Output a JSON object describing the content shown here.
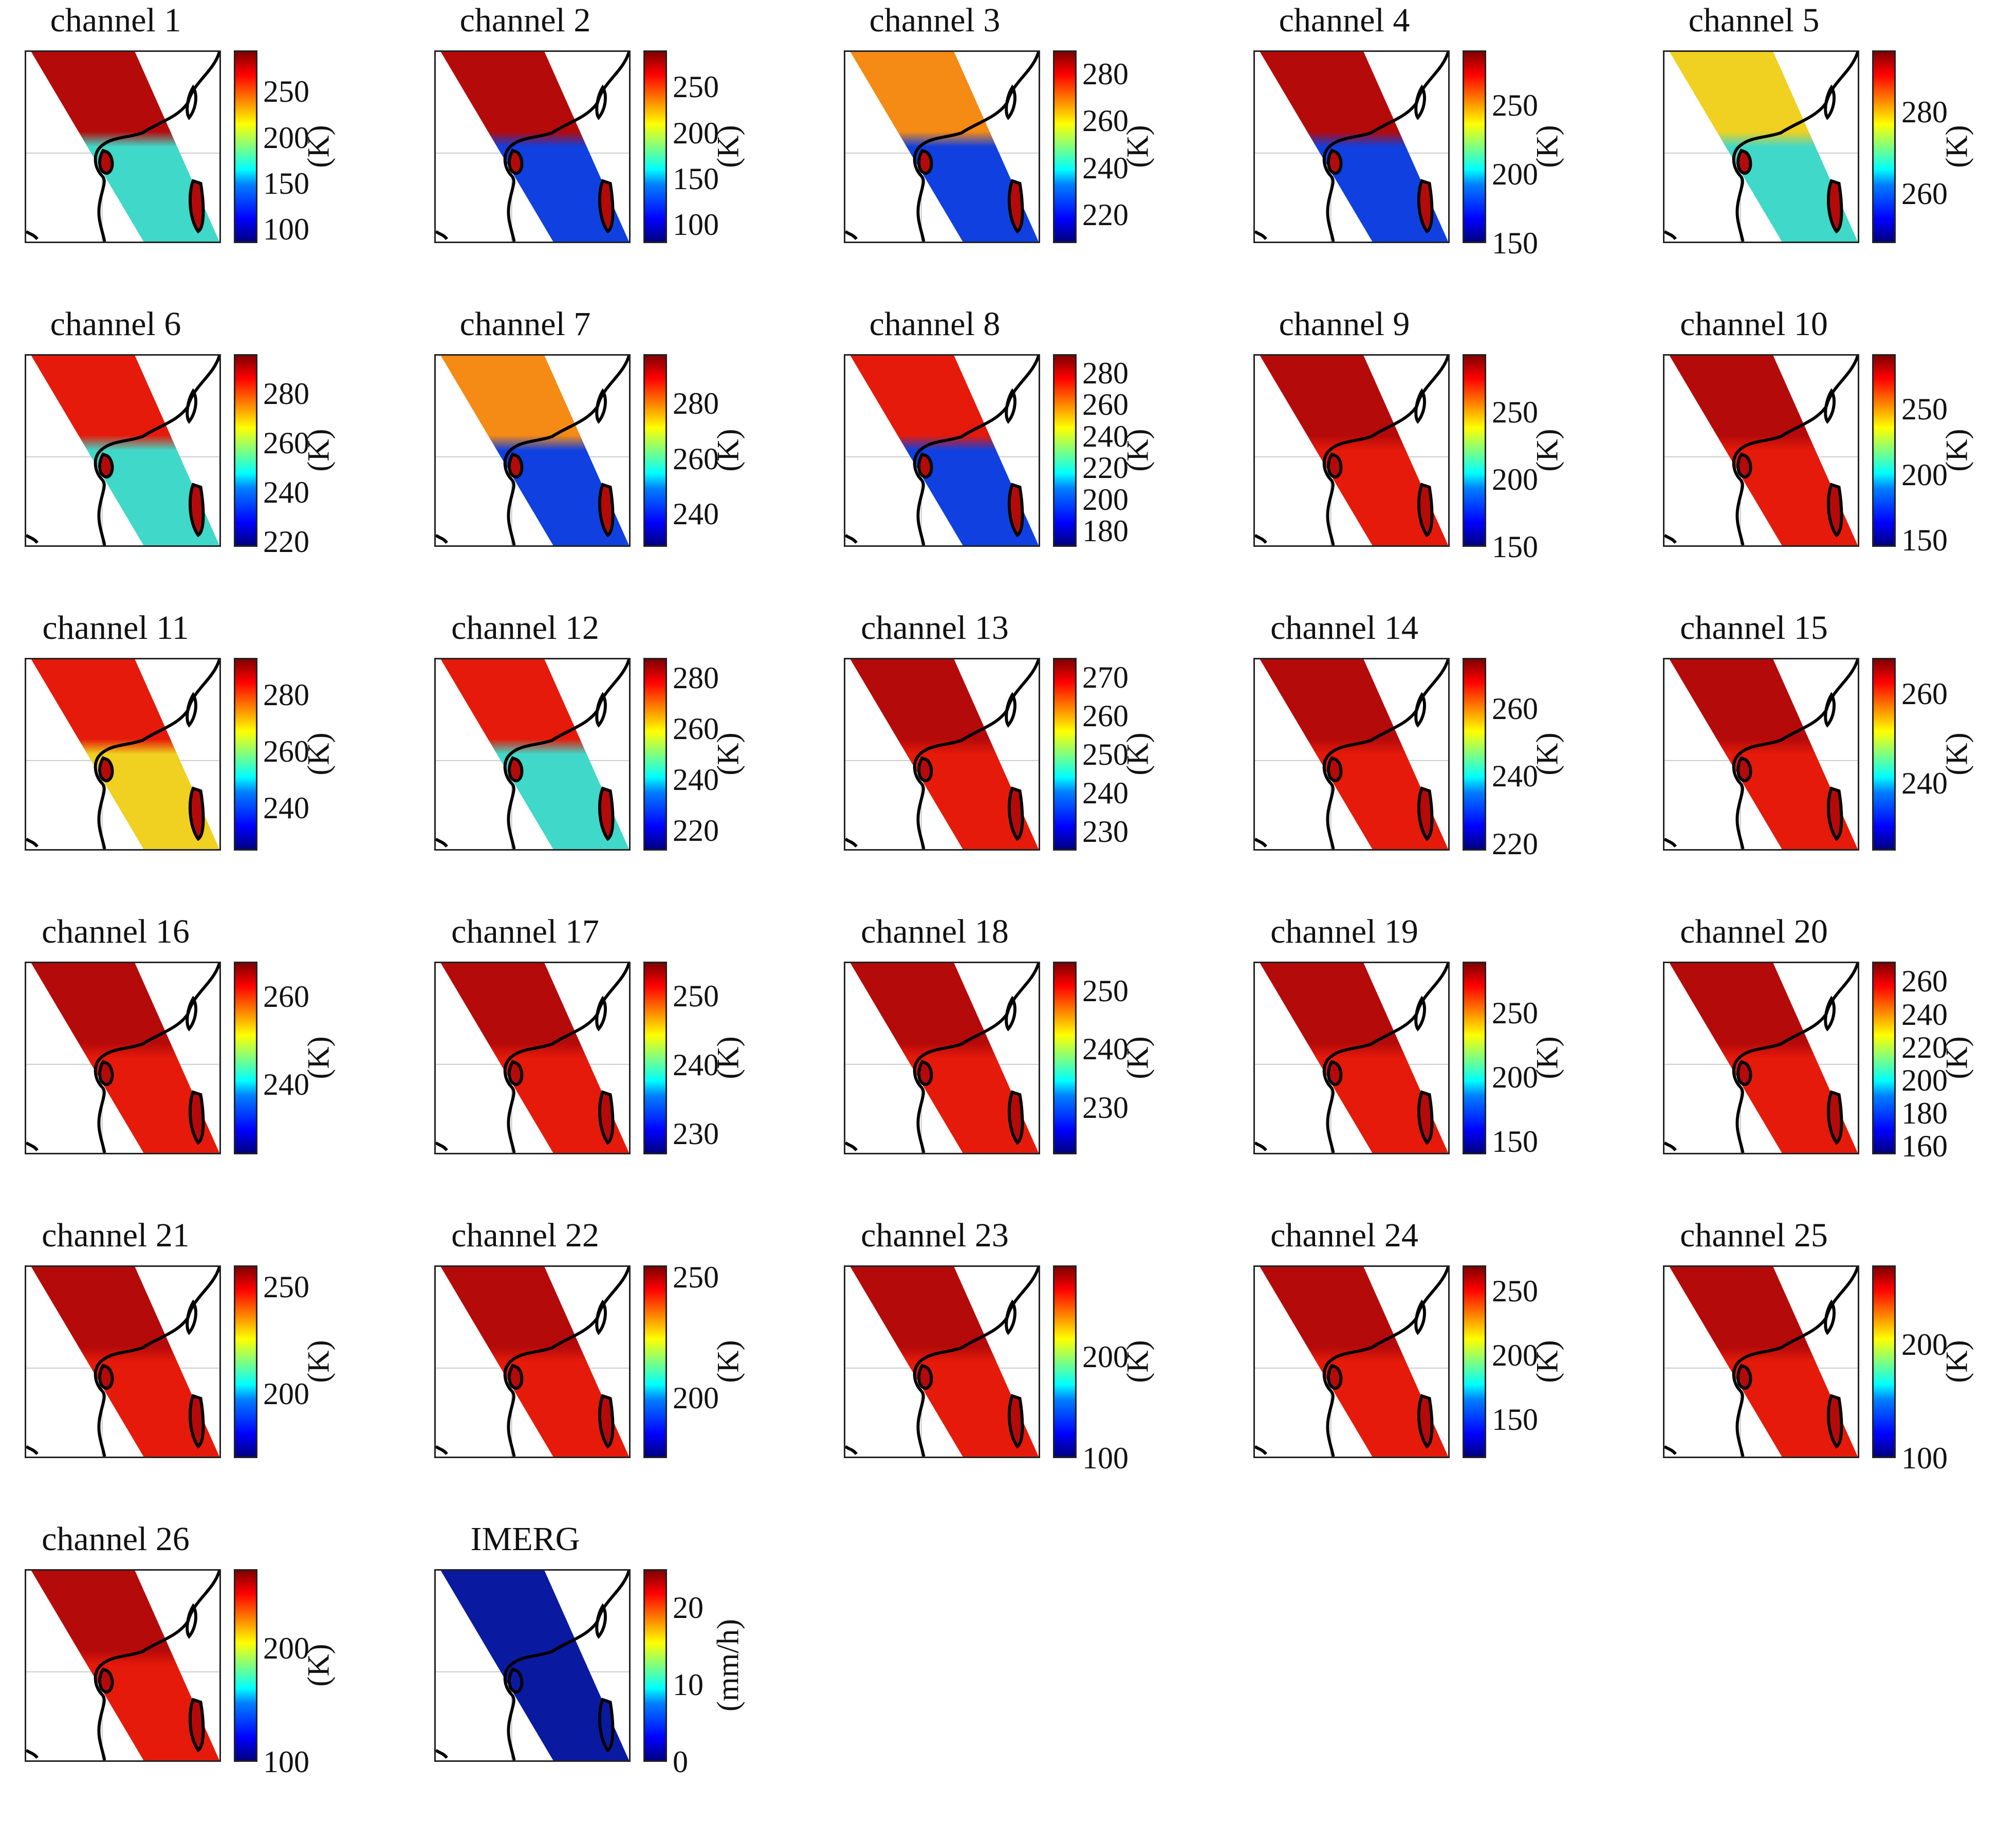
{
  "chart_data": [
    {
      "type": "heatmap",
      "title": "channel 1",
      "unit": "(K)",
      "cbar_range": [
        85,
        295
      ],
      "cbar_ticks": [
        100,
        150,
        200,
        250
      ],
      "colormap": "jet"
    },
    {
      "type": "heatmap",
      "title": "channel 2",
      "unit": "(K)",
      "cbar_range": [
        80,
        290
      ],
      "cbar_ticks": [
        100,
        150,
        200,
        250
      ],
      "colormap": "jet"
    },
    {
      "type": "heatmap",
      "title": "channel 3",
      "unit": "(K)",
      "cbar_range": [
        208,
        290
      ],
      "cbar_ticks": [
        220,
        240,
        260,
        280
      ],
      "colormap": "jet"
    },
    {
      "type": "heatmap",
      "title": "channel 4",
      "unit": "(K)",
      "cbar_range": [
        150,
        290
      ],
      "cbar_ticks": [
        150,
        200,
        250
      ],
      "colormap": "jet"
    },
    {
      "type": "heatmap",
      "title": "channel 5",
      "unit": "(K)",
      "cbar_range": [
        248,
        295
      ],
      "cbar_ticks": [
        260,
        280
      ],
      "colormap": "jet"
    },
    {
      "type": "heatmap",
      "title": "channel 6",
      "unit": "(K)",
      "cbar_range": [
        218,
        296
      ],
      "cbar_ticks": [
        220,
        240,
        260,
        280
      ],
      "colormap": "jet"
    },
    {
      "type": "heatmap",
      "title": "channel 7",
      "unit": "(K)",
      "cbar_range": [
        228,
        298
      ],
      "cbar_ticks": [
        240,
        260,
        280
      ],
      "colormap": "jet"
    },
    {
      "type": "heatmap",
      "title": "channel 8",
      "unit": "(K)",
      "cbar_range": [
        170,
        292
      ],
      "cbar_ticks": [
        180,
        200,
        220,
        240,
        260,
        280
      ],
      "colormap": "jet"
    },
    {
      "type": "heatmap",
      "title": "channel 9",
      "unit": "(K)",
      "cbar_range": [
        150,
        293
      ],
      "cbar_ticks": [
        150,
        200,
        250
      ],
      "colormap": "jet"
    },
    {
      "type": "heatmap",
      "title": "channel 10",
      "unit": "(K)",
      "cbar_range": [
        145,
        292
      ],
      "cbar_ticks": [
        150,
        200,
        250
      ],
      "colormap": "jet"
    },
    {
      "type": "heatmap",
      "title": "channel 11",
      "unit": "(K)",
      "cbar_range": [
        225,
        293
      ],
      "cbar_ticks": [
        240,
        260,
        280
      ],
      "colormap": "jet"
    },
    {
      "type": "heatmap",
      "title": "channel 12",
      "unit": "(K)",
      "cbar_range": [
        212,
        288
      ],
      "cbar_ticks": [
        220,
        240,
        260,
        280
      ],
      "colormap": "jet"
    },
    {
      "type": "heatmap",
      "title": "channel 13",
      "unit": "(K)",
      "cbar_range": [
        225,
        275
      ],
      "cbar_ticks": [
        230,
        240,
        250,
        260,
        270
      ],
      "colormap": "jet"
    },
    {
      "type": "heatmap",
      "title": "channel 14",
      "unit": "(K)",
      "cbar_range": [
        218,
        275
      ],
      "cbar_ticks": [
        220,
        240,
        260
      ],
      "colormap": "jet"
    },
    {
      "type": "heatmap",
      "title": "channel 15",
      "unit": "(K)",
      "cbar_range": [
        225,
        268
      ],
      "cbar_ticks": [
        240,
        260
      ],
      "colormap": "jet"
    },
    {
      "type": "heatmap",
      "title": "channel 16",
      "unit": "(K)",
      "cbar_range": [
        224,
        268
      ],
      "cbar_ticks": [
        240,
        260
      ],
      "colormap": "jet"
    },
    {
      "type": "heatmap",
      "title": "channel 17",
      "unit": "(K)",
      "cbar_range": [
        227,
        255
      ],
      "cbar_ticks": [
        230,
        240,
        250
      ],
      "colormap": "jet"
    },
    {
      "type": "heatmap",
      "title": "channel 18",
      "unit": "(K)",
      "cbar_range": [
        222,
        255
      ],
      "cbar_ticks": [
        230,
        240,
        250
      ],
      "colormap": "jet"
    },
    {
      "type": "heatmap",
      "title": "channel 19",
      "unit": "(K)",
      "cbar_range": [
        140,
        290
      ],
      "cbar_ticks": [
        150,
        200,
        250
      ],
      "colormap": "jet"
    },
    {
      "type": "heatmap",
      "title": "channel 20",
      "unit": "(K)",
      "cbar_range": [
        155,
        272
      ],
      "cbar_ticks": [
        160,
        180,
        200,
        220,
        240,
        260
      ],
      "colormap": "jet"
    },
    {
      "type": "heatmap",
      "title": "channel 21",
      "unit": "(K)",
      "cbar_range": [
        170,
        260
      ],
      "cbar_ticks": [
        200,
        250
      ],
      "colormap": "jet"
    },
    {
      "type": "heatmap",
      "title": "channel 22",
      "unit": "(K)",
      "cbar_range": [
        175,
        255
      ],
      "cbar_ticks": [
        200,
        250
      ],
      "colormap": "jet"
    },
    {
      "type": "heatmap",
      "title": "channel 23",
      "unit": "(K)",
      "cbar_range": [
        100,
        290
      ],
      "cbar_ticks": [
        100,
        200
      ],
      "colormap": "jet"
    },
    {
      "type": "heatmap",
      "title": "channel 24",
      "unit": "(K)",
      "cbar_range": [
        120,
        270
      ],
      "cbar_ticks": [
        150,
        200,
        250
      ],
      "colormap": "jet"
    },
    {
      "type": "heatmap",
      "title": "channel 25",
      "unit": "(K)",
      "cbar_range": [
        100,
        270
      ],
      "cbar_ticks": [
        100,
        200
      ],
      "colormap": "jet"
    },
    {
      "type": "heatmap",
      "title": "channel 26",
      "unit": "(K)",
      "cbar_range": [
        100,
        270
      ],
      "cbar_ticks": [
        100,
        200
      ],
      "colormap": "jet"
    },
    {
      "type": "heatmap",
      "title": "IMERG",
      "unit": "(mm/h)",
      "cbar_range": [
        0,
        25
      ],
      "cbar_ticks": [
        0,
        10,
        20
      ],
      "colormap": "jet"
    }
  ],
  "colors": {
    "frame": "#222222",
    "coastline": "#000000",
    "gridline": "#c8c8c8",
    "swath_warm": "#e51a0a",
    "swath_hot": "#b50a0a",
    "swath_cold": "#1040e0",
    "swath_cyan": "#40d8c8",
    "swath_yellow": "#f0d020",
    "swath_orange": "#f58a14",
    "swath_imerg": "#0a1aa0"
  }
}
